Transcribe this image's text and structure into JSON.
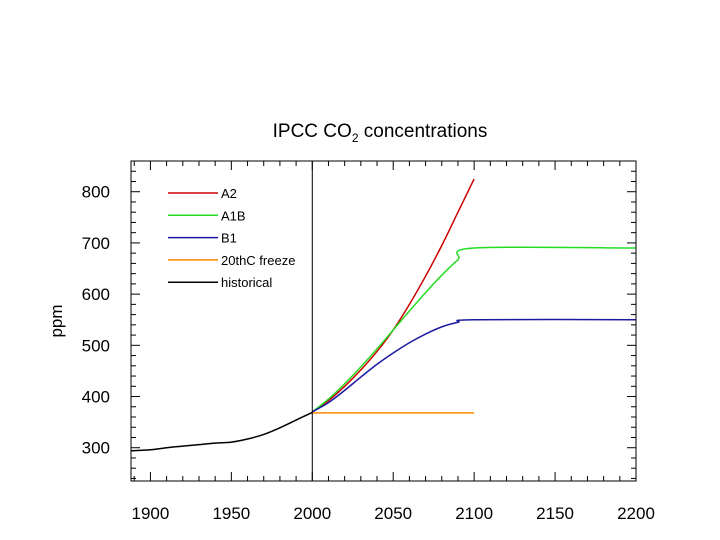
{
  "chart_data": {
    "type": "line",
    "title_main": "IPCC CO",
    "title_sub": "2",
    "title_rest": " concentrations",
    "xlabel": "",
    "ylabel": "ppm",
    "xlim": [
      1888,
      2200
    ],
    "ylim": [
      235,
      860
    ],
    "xticks": [
      1900,
      1950,
      2000,
      2050,
      2100,
      2150,
      2200
    ],
    "yticks": [
      300,
      400,
      500,
      600,
      700,
      800
    ],
    "vline": 2000,
    "series": [
      {
        "name": "A2",
        "color": "#cc0000",
        "x": [
          2000,
          2010,
          2020,
          2030,
          2040,
          2050,
          2060,
          2070,
          2080,
          2090,
          2100
        ],
        "y": [
          370,
          392,
          420,
          452,
          488,
          530,
          580,
          635,
          695,
          760,
          825
        ]
      },
      {
        "name": "A1B",
        "color": "#22dd22",
        "x": [
          2000,
          2010,
          2020,
          2030,
          2040,
          2050,
          2060,
          2070,
          2080,
          2090,
          2100,
          2200
        ],
        "y": [
          370,
          395,
          425,
          458,
          493,
          530,
          567,
          603,
          637,
          667,
          690,
          690
        ]
      },
      {
        "name": "B1",
        "color": "#1a1aa0",
        "x": [
          2000,
          2010,
          2020,
          2030,
          2040,
          2050,
          2060,
          2070,
          2080,
          2090,
          2100,
          2200
        ],
        "y": [
          370,
          388,
          412,
          438,
          463,
          485,
          505,
          522,
          536,
          545,
          550,
          550
        ]
      },
      {
        "name": "20thC freeze",
        "color": "#ff8800",
        "x": [
          2000,
          2100
        ],
        "y": [
          368,
          368
        ]
      },
      {
        "name": "historical",
        "color": "#000000",
        "x": [
          1888,
          1900,
          1910,
          1920,
          1930,
          1940,
          1950,
          1960,
          1970,
          1980,
          1990,
          2000
        ],
        "y": [
          294,
          296,
          300,
          303,
          306,
          309,
          311,
          317,
          326,
          339,
          354,
          369
        ]
      }
    ]
  }
}
